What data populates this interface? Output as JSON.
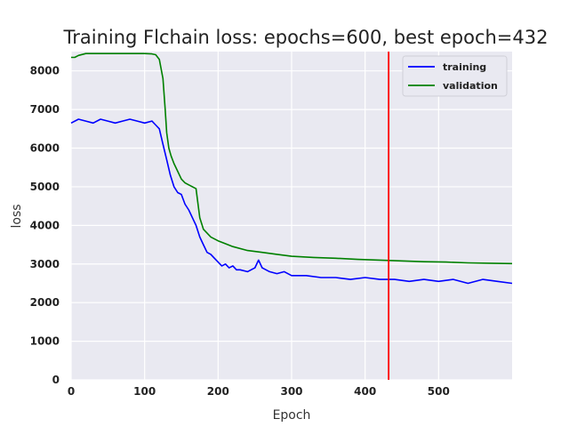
{
  "chart_data": {
    "type": "line",
    "title": "Training Flchain loss: epochs=600, best epoch=432",
    "xlabel": "Epoch",
    "ylabel": "loss",
    "xlim": [
      0,
      600
    ],
    "ylim": [
      0,
      8500
    ],
    "x_ticks": [
      0,
      100,
      200,
      300,
      400,
      500
    ],
    "y_ticks": [
      0,
      1000,
      2000,
      3000,
      4000,
      5000,
      6000,
      7000,
      8000
    ],
    "grid": true,
    "legend_position": "top-right",
    "best_epoch": 432,
    "colors": {
      "training": "#0000ff",
      "validation": "#008000",
      "best_epoch_line": "#ff0000",
      "plot_background": "#e9e9f1",
      "grid": "#ffffff"
    },
    "series": [
      {
        "name": "training",
        "color": "#0000ff",
        "x": [
          0,
          10,
          20,
          30,
          40,
          50,
          60,
          70,
          80,
          90,
          100,
          110,
          115,
          120,
          125,
          130,
          135,
          140,
          145,
          150,
          155,
          160,
          165,
          170,
          175,
          180,
          185,
          190,
          195,
          200,
          205,
          210,
          215,
          220,
          225,
          230,
          240,
          250,
          255,
          260,
          270,
          280,
          290,
          300,
          320,
          340,
          360,
          380,
          400,
          420,
          440,
          460,
          480,
          500,
          520,
          540,
          560,
          580,
          600
        ],
        "y": [
          6650,
          6750,
          6700,
          6650,
          6750,
          6700,
          6650,
          6700,
          6750,
          6700,
          6650,
          6700,
          6600,
          6500,
          6100,
          5700,
          5300,
          5000,
          4850,
          4800,
          4550,
          4400,
          4200,
          4000,
          3700,
          3500,
          3300,
          3250,
          3150,
          3050,
          2950,
          3000,
          2900,
          2950,
          2850,
          2850,
          2800,
          2900,
          3100,
          2900,
          2800,
          2750,
          2800,
          2700,
          2700,
          2650,
          2650,
          2600,
          2650,
          2600,
          2600,
          2550,
          2600,
          2550,
          2600,
          2500,
          2600,
          2550,
          2500
        ]
      },
      {
        "name": "validation",
        "color": "#008000",
        "x": [
          0,
          5,
          10,
          20,
          40,
          60,
          80,
          100,
          110,
          115,
          120,
          125,
          128,
          130,
          133,
          136,
          140,
          145,
          150,
          155,
          160,
          170,
          175,
          180,
          190,
          200,
          220,
          240,
          260,
          280,
          300,
          330,
          360,
          390,
          420,
          450,
          480,
          510,
          540,
          570,
          600
        ],
        "y": [
          8350,
          8350,
          8400,
          8450,
          8450,
          8450,
          8450,
          8450,
          8440,
          8420,
          8300,
          7800,
          7000,
          6400,
          6000,
          5800,
          5600,
          5400,
          5200,
          5100,
          5050,
          4950,
          4200,
          3900,
          3700,
          3600,
          3450,
          3350,
          3300,
          3250,
          3200,
          3170,
          3150,
          3120,
          3100,
          3080,
          3060,
          3050,
          3030,
          3020,
          3010
        ]
      }
    ]
  }
}
